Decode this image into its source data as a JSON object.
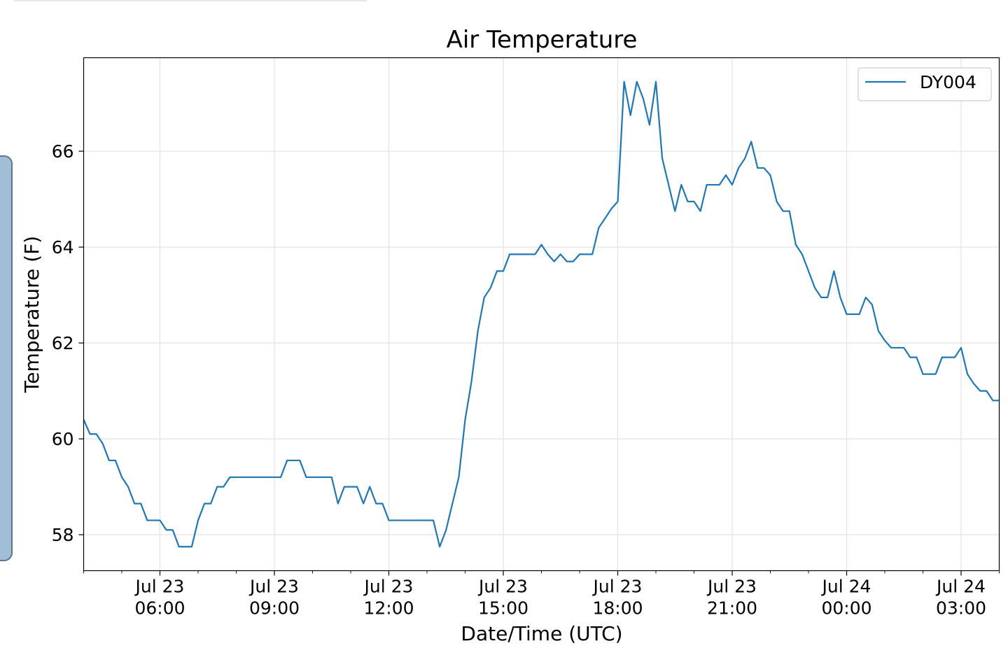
{
  "chart_data": {
    "type": "line",
    "title": "Air Temperature",
    "xlabel": "Date/Time (UTC)",
    "ylabel": "Temperature (F)",
    "x_unit": "time (UTC), Jul 23 04:00 – Jul 24 04:00",
    "xlim": [
      "Jul 23 04:00",
      "Jul 24 04:00"
    ],
    "ylim": [
      57.25,
      67.95
    ],
    "grid": true,
    "legend_position": "top-right",
    "x_ticks": [
      {
        "value": "Jul 23 06:00",
        "line1": "Jul 23",
        "line2": "06:00"
      },
      {
        "value": "Jul 23 09:00",
        "line1": "Jul 23",
        "line2": "09:00"
      },
      {
        "value": "Jul 23 12:00",
        "line1": "Jul 23",
        "line2": "12:00"
      },
      {
        "value": "Jul 23 15:00",
        "line1": "Jul 23",
        "line2": "15:00"
      },
      {
        "value": "Jul 23 18:00",
        "line1": "Jul 23",
        "line2": "18:00"
      },
      {
        "value": "Jul 23 21:00",
        "line1": "Jul 23",
        "line2": "21:00"
      },
      {
        "value": "Jul 24 00:00",
        "line1": "Jul 24",
        "line2": "00:00"
      },
      {
        "value": "Jul 24 03:00",
        "line1": "Jul 24",
        "line2": "03:00"
      }
    ],
    "y_ticks": [
      58,
      60,
      62,
      64,
      66
    ],
    "series": [
      {
        "name": "DY004",
        "color": "#1f77b4",
        "points": [
          [
            "Jul 23 04:00",
            60.4
          ],
          [
            "Jul 23 04:10",
            60.1
          ],
          [
            "Jul 23 04:20",
            60.1
          ],
          [
            "Jul 23 04:30",
            59.9
          ],
          [
            "Jul 23 04:40",
            59.55
          ],
          [
            "Jul 23 04:50",
            59.55
          ],
          [
            "Jul 23 05:00",
            59.2
          ],
          [
            "Jul 23 05:10",
            59.0
          ],
          [
            "Jul 23 05:20",
            58.65
          ],
          [
            "Jul 23 05:30",
            58.65
          ],
          [
            "Jul 23 05:40",
            58.3
          ],
          [
            "Jul 23 05:50",
            58.3
          ],
          [
            "Jul 23 06:00",
            58.3
          ],
          [
            "Jul 23 06:10",
            58.1
          ],
          [
            "Jul 23 06:20",
            58.1
          ],
          [
            "Jul 23 06:30",
            57.75
          ],
          [
            "Jul 23 06:40",
            57.75
          ],
          [
            "Jul 23 06:50",
            57.75
          ],
          [
            "Jul 23 07:00",
            58.3
          ],
          [
            "Jul 23 07:10",
            58.65
          ],
          [
            "Jul 23 07:20",
            58.65
          ],
          [
            "Jul 23 07:30",
            59.0
          ],
          [
            "Jul 23 07:40",
            59.0
          ],
          [
            "Jul 23 07:50",
            59.2
          ],
          [
            "Jul 23 08:00",
            59.2
          ],
          [
            "Jul 23 08:10",
            59.2
          ],
          [
            "Jul 23 08:20",
            59.2
          ],
          [
            "Jul 23 08:30",
            59.2
          ],
          [
            "Jul 23 08:40",
            59.2
          ],
          [
            "Jul 23 08:50",
            59.2
          ],
          [
            "Jul 23 09:00",
            59.2
          ],
          [
            "Jul 23 09:10",
            59.2
          ],
          [
            "Jul 23 09:20",
            59.55
          ],
          [
            "Jul 23 09:30",
            59.55
          ],
          [
            "Jul 23 09:40",
            59.55
          ],
          [
            "Jul 23 09:50",
            59.2
          ],
          [
            "Jul 23 10:00",
            59.2
          ],
          [
            "Jul 23 10:10",
            59.2
          ],
          [
            "Jul 23 10:20",
            59.2
          ],
          [
            "Jul 23 10:30",
            59.2
          ],
          [
            "Jul 23 10:40",
            58.65
          ],
          [
            "Jul 23 10:50",
            59.0
          ],
          [
            "Jul 23 11:00",
            59.0
          ],
          [
            "Jul 23 11:10",
            59.0
          ],
          [
            "Jul 23 11:20",
            58.65
          ],
          [
            "Jul 23 11:30",
            59.0
          ],
          [
            "Jul 23 11:40",
            58.65
          ],
          [
            "Jul 23 11:50",
            58.65
          ],
          [
            "Jul 23 12:00",
            58.3
          ],
          [
            "Jul 23 12:10",
            58.3
          ],
          [
            "Jul 23 12:20",
            58.3
          ],
          [
            "Jul 23 12:30",
            58.3
          ],
          [
            "Jul 23 12:40",
            58.3
          ],
          [
            "Jul 23 12:50",
            58.3
          ],
          [
            "Jul 23 13:00",
            58.3
          ],
          [
            "Jul 23 13:10",
            58.3
          ],
          [
            "Jul 23 13:20",
            57.75
          ],
          [
            "Jul 23 13:30",
            58.1
          ],
          [
            "Jul 23 13:40",
            58.65
          ],
          [
            "Jul 23 13:50",
            59.2
          ],
          [
            "Jul 23 14:00",
            60.4
          ],
          [
            "Jul 23 14:10",
            61.2
          ],
          [
            "Jul 23 14:20",
            62.25
          ],
          [
            "Jul 23 14:30",
            62.95
          ],
          [
            "Jul 23 14:40",
            63.15
          ],
          [
            "Jul 23 14:50",
            63.5
          ],
          [
            "Jul 23 15:00",
            63.5
          ],
          [
            "Jul 23 15:10",
            63.85
          ],
          [
            "Jul 23 15:20",
            63.85
          ],
          [
            "Jul 23 15:30",
            63.85
          ],
          [
            "Jul 23 15:40",
            63.85
          ],
          [
            "Jul 23 15:50",
            63.85
          ],
          [
            "Jul 23 16:00",
            64.05
          ],
          [
            "Jul 23 16:10",
            63.85
          ],
          [
            "Jul 23 16:20",
            63.7
          ],
          [
            "Jul 23 16:30",
            63.85
          ],
          [
            "Jul 23 16:40",
            63.7
          ],
          [
            "Jul 23 16:50",
            63.7
          ],
          [
            "Jul 23 17:00",
            63.85
          ],
          [
            "Jul 23 17:10",
            63.85
          ],
          [
            "Jul 23 17:20",
            63.85
          ],
          [
            "Jul 23 17:30",
            64.4
          ],
          [
            "Jul 23 17:40",
            64.6
          ],
          [
            "Jul 23 17:50",
            64.8
          ],
          [
            "Jul 23 18:00",
            64.95
          ],
          [
            "Jul 23 18:10",
            67.45
          ],
          [
            "Jul 23 18:20",
            66.75
          ],
          [
            "Jul 23 18:30",
            67.45
          ],
          [
            "Jul 23 18:40",
            67.1
          ],
          [
            "Jul 23 18:50",
            66.55
          ],
          [
            "Jul 23 19:00",
            67.45
          ],
          [
            "Jul 23 19:10",
            65.85
          ],
          [
            "Jul 23 19:20",
            65.3
          ],
          [
            "Jul 23 19:30",
            64.75
          ],
          [
            "Jul 23 19:40",
            65.3
          ],
          [
            "Jul 23 19:50",
            64.95
          ],
          [
            "Jul 23 20:00",
            64.95
          ],
          [
            "Jul 23 20:10",
            64.75
          ],
          [
            "Jul 23 20:20",
            65.3
          ],
          [
            "Jul 23 20:30",
            65.3
          ],
          [
            "Jul 23 20:40",
            65.3
          ],
          [
            "Jul 23 20:50",
            65.5
          ],
          [
            "Jul 23 21:00",
            65.3
          ],
          [
            "Jul 23 21:10",
            65.65
          ],
          [
            "Jul 23 21:20",
            65.85
          ],
          [
            "Jul 23 21:30",
            66.2
          ],
          [
            "Jul 23 21:40",
            65.65
          ],
          [
            "Jul 23 21:50",
            65.65
          ],
          [
            "Jul 23 22:00",
            65.5
          ],
          [
            "Jul 23 22:10",
            64.95
          ],
          [
            "Jul 23 22:20",
            64.75
          ],
          [
            "Jul 23 22:30",
            64.75
          ],
          [
            "Jul 23 22:40",
            64.05
          ],
          [
            "Jul 23 22:50",
            63.85
          ],
          [
            "Jul 23 23:00",
            63.5
          ],
          [
            "Jul 23 23:10",
            63.15
          ],
          [
            "Jul 23 23:20",
            62.95
          ],
          [
            "Jul 23 23:30",
            62.95
          ],
          [
            "Jul 23 23:40",
            63.5
          ],
          [
            "Jul 23 23:50",
            62.95
          ],
          [
            "Jul 24 00:00",
            62.6
          ],
          [
            "Jul 24 00:10",
            62.6
          ],
          [
            "Jul 24 00:20",
            62.6
          ],
          [
            "Jul 24 00:30",
            62.95
          ],
          [
            "Jul 24 00:40",
            62.8
          ],
          [
            "Jul 24 00:50",
            62.25
          ],
          [
            "Jul 24 01:00",
            62.05
          ],
          [
            "Jul 24 01:10",
            61.9
          ],
          [
            "Jul 24 01:20",
            61.9
          ],
          [
            "Jul 24 01:30",
            61.9
          ],
          [
            "Jul 24 01:40",
            61.7
          ],
          [
            "Jul 24 01:50",
            61.7
          ],
          [
            "Jul 24 02:00",
            61.35
          ],
          [
            "Jul 24 02:10",
            61.35
          ],
          [
            "Jul 24 02:20",
            61.35
          ],
          [
            "Jul 24 02:30",
            61.7
          ],
          [
            "Jul 24 02:40",
            61.7
          ],
          [
            "Jul 24 02:50",
            61.7
          ],
          [
            "Jul 24 03:00",
            61.9
          ],
          [
            "Jul 24 03:10",
            61.35
          ],
          [
            "Jul 24 03:20",
            61.15
          ],
          [
            "Jul 24 03:30",
            61.0
          ],
          [
            "Jul 24 03:40",
            61.0
          ],
          [
            "Jul 24 03:50",
            60.8
          ],
          [
            "Jul 24 04:00",
            60.8
          ]
        ]
      }
    ]
  }
}
